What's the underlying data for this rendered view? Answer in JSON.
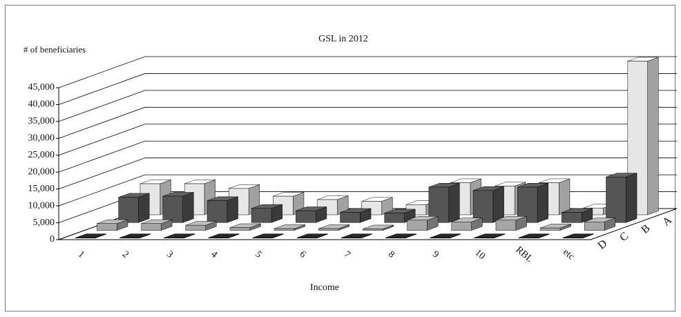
{
  "chart_data": {
    "type": "bar3d",
    "title": "GSL in 2012",
    "y_label": "# of beneficiaries",
    "x_label": "Income",
    "categories": [
      "1",
      "2",
      "3",
      "4",
      "5",
      "6",
      "7",
      "8",
      "9",
      "10",
      "RBL",
      "etc"
    ],
    "series": [
      {
        "name": "A",
        "color": "#e6e6e6",
        "values": [
          9200,
          9200,
          7800,
          5500,
          4500,
          4000,
          3000,
          9500,
          8500,
          9500,
          2000,
          45500
        ]
      },
      {
        "name": "B",
        "color": "#555555",
        "values": [
          7500,
          7800,
          6500,
          4200,
          3500,
          3000,
          2800,
          10500,
          9500,
          10500,
          3000,
          13500
        ]
      },
      {
        "name": "C",
        "color": "#a6a6a6",
        "values": [
          2000,
          2000,
          1500,
          800,
          500,
          500,
          400,
          3000,
          2500,
          3000,
          700,
          2500
        ]
      },
      {
        "name": "D",
        "color": "#222222",
        "values": [
          100,
          100,
          100,
          100,
          100,
          100,
          100,
          100,
          100,
          100,
          100,
          100
        ]
      }
    ],
    "ylim": [
      0,
      45000
    ],
    "yticks": [
      0,
      {
        "value": 5000,
        "label": "5,000"
      },
      {
        "value": 10000,
        "label": "10,000"
      },
      {
        "value": 15000,
        "label": "15,000"
      },
      {
        "value": 20000,
        "label": "20,000"
      },
      {
        "value": 25000,
        "label": "25,000"
      },
      {
        "value": 30000,
        "label": "30,000"
      },
      {
        "value": 35000,
        "label": "35,000"
      },
      {
        "value": 40000,
        "label": "40,000"
      },
      {
        "value": 45000,
        "label": "45,000"
      }
    ],
    "grid": true
  }
}
